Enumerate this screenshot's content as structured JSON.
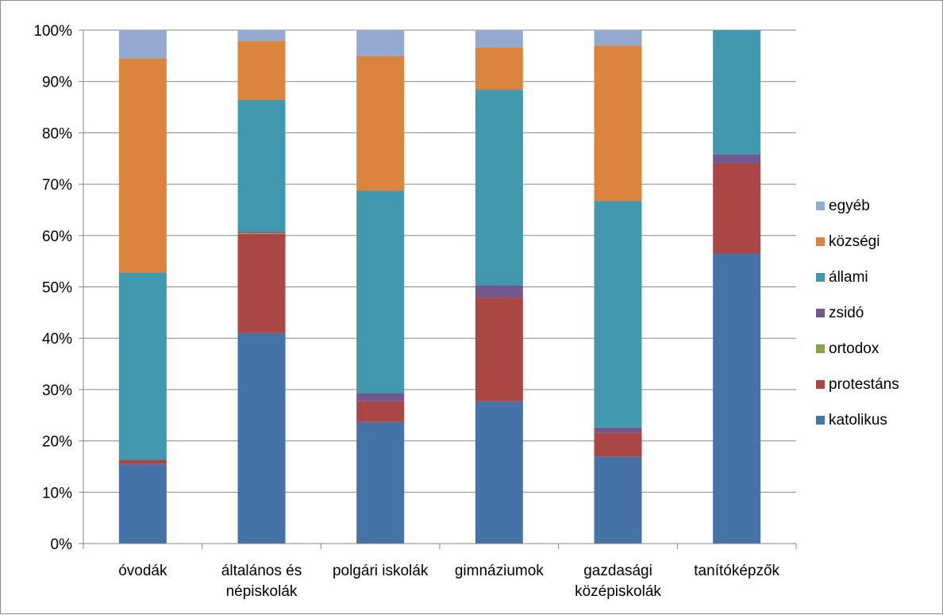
{
  "chart_data": {
    "type": "bar",
    "stacked": "percent",
    "title": "",
    "xlabel": "",
    "ylabel": "",
    "ylim": [
      0,
      100
    ],
    "y_ticks": [
      "0%",
      "10%",
      "20%",
      "30%",
      "40%",
      "50%",
      "60%",
      "70%",
      "80%",
      "90%",
      "100%"
    ],
    "grid": true,
    "legend_position": "right",
    "categories": [
      [
        "óvodák"
      ],
      [
        "általános és",
        "népiskolák"
      ],
      [
        "polgári iskolák"
      ],
      [
        "gimnáziumok"
      ],
      [
        "gazdasági",
        "középiskolák"
      ],
      [
        "tanítóképzők"
      ]
    ],
    "series": [
      {
        "name": "katolikus",
        "color": "#4572a7",
        "values": [
          15.5,
          41.0,
          23.7,
          27.7,
          16.9,
          56.5
        ]
      },
      {
        "name": "protestáns",
        "color": "#aa4643",
        "values": [
          0.8,
          19.3,
          4.0,
          20.2,
          4.7,
          17.6
        ]
      },
      {
        "name": "ortodox",
        "color": "#89a54e",
        "values": [
          0.0,
          0.2,
          0.0,
          0.0,
          0.0,
          0.0
        ]
      },
      {
        "name": "zsidó",
        "color": "#71588f",
        "values": [
          0.0,
          0.3,
          1.6,
          2.4,
          1.0,
          1.7
        ]
      },
      {
        "name": "állami",
        "color": "#4198af",
        "values": [
          36.5,
          25.6,
          39.4,
          38.1,
          44.1,
          24.2
        ]
      },
      {
        "name": "községi",
        "color": "#db843d",
        "values": [
          41.7,
          11.5,
          26.2,
          8.2,
          30.3,
          0.0
        ]
      },
      {
        "name": "egyéb",
        "color": "#93a9cf",
        "values": [
          5.5,
          2.1,
          5.1,
          3.4,
          3.0,
          0.0
        ]
      }
    ],
    "legend_order": [
      "egyéb",
      "községi",
      "állami",
      "zsidó",
      "ortodox",
      "protestáns",
      "katolikus"
    ]
  }
}
